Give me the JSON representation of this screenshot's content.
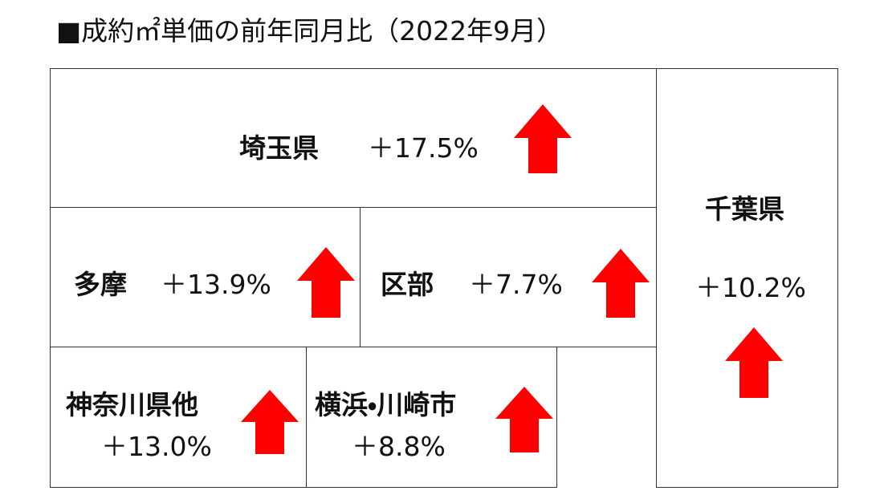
{
  "title": "■成約㎡単価の前年同月比（2022年9月）",
  "regions": [
    {
      "name": "埼玉県",
      "change": "＋17.5%"
    },
    {
      "name": "千葉県",
      "change": "＋10.2%"
    },
    {
      "name": "多摩",
      "change": "＋13.9%"
    },
    {
      "name": "区部",
      "change": "＋7.7%"
    },
    {
      "name": "神奈川県他",
      "change": "＋13.0%"
    },
    {
      "name": "横浜・川崎市",
      "change": "＋8.8%"
    }
  ]
}
